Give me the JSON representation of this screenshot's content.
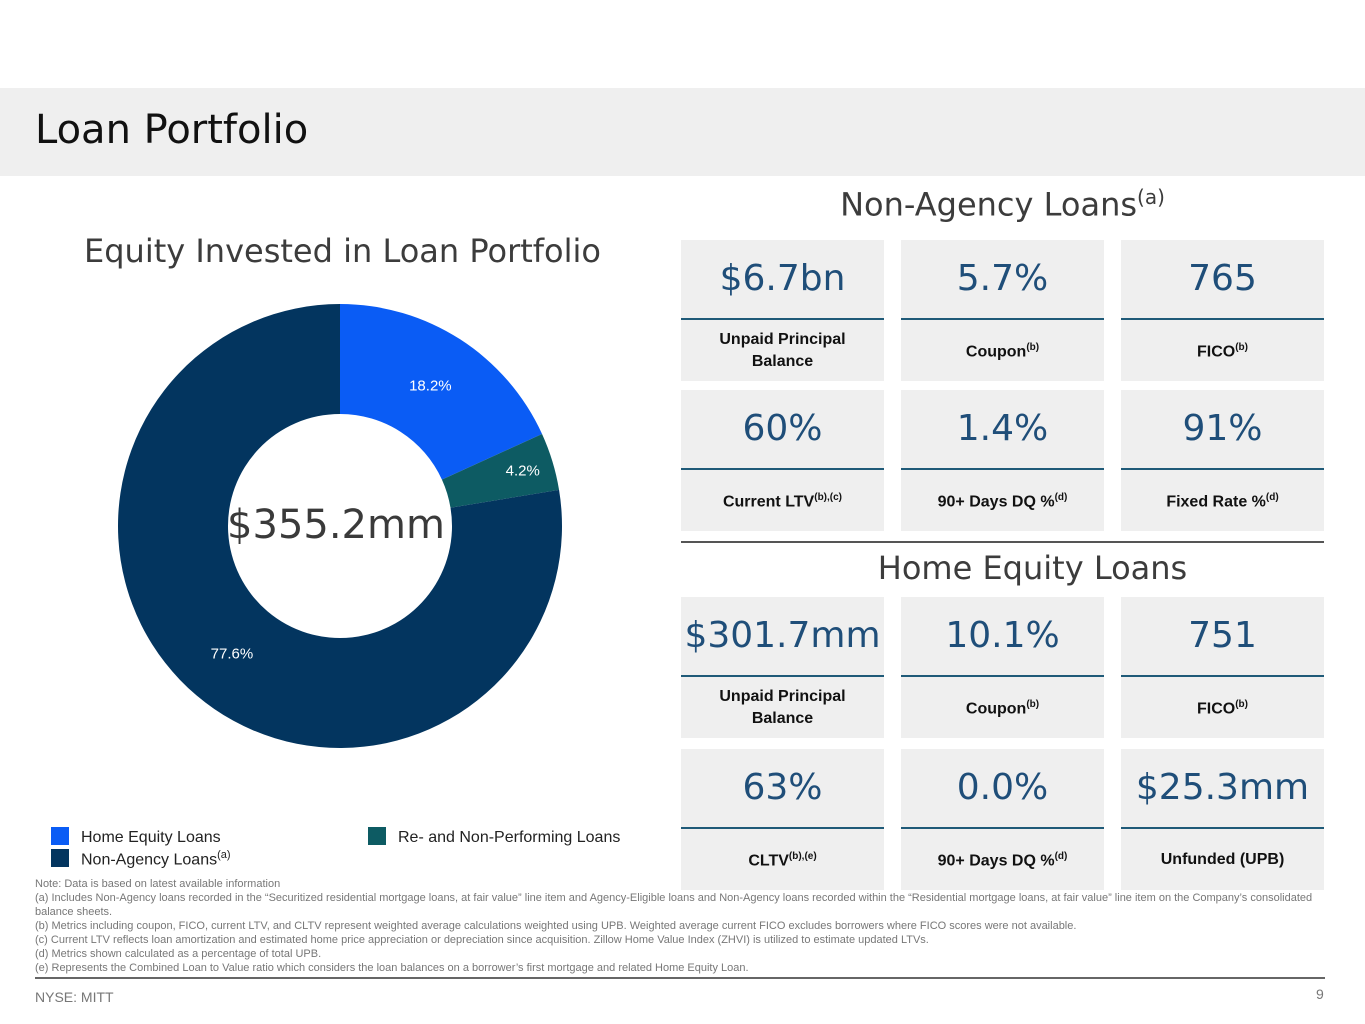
{
  "page": {
    "title": "Loan Portfolio"
  },
  "chart": {
    "title": "Equity Invested in Loan Portfolio",
    "center_label": "$355.2mm"
  },
  "chart_data": {
    "type": "pie",
    "title": "Equity Invested in Loan Portfolio",
    "center_label": "$355.2mm",
    "slices": [
      {
        "name": "Home Equity Loans",
        "value": 18.2,
        "label": "18.2%",
        "color": "#0a5cf5"
      },
      {
        "name": "Re- and Non-Performing Loans",
        "value": 4.2,
        "label": "4.2%",
        "color": "#0d5b63"
      },
      {
        "name": "Non-Agency Loans",
        "value": 77.6,
        "label": "77.6%",
        "color": "#03355f"
      }
    ]
  },
  "legend": {
    "home_equity": "Home Equity Loans",
    "rpl_npl": "Re- and Non-Performing Loans",
    "non_agency": "Non-Agency Loans",
    "non_agency_note": "(a)"
  },
  "non_agency": {
    "title": "Non-Agency Loans",
    "note": "(a)",
    "cards": [
      {
        "value": "$6.7bn",
        "label": "Unpaid Principal Balance",
        "sup": ""
      },
      {
        "value": "5.7%",
        "label": "Coupon",
        "sup": "(b)"
      },
      {
        "value": "765",
        "label": "FICO",
        "sup": "(b)"
      },
      {
        "value": "60%",
        "label": "Current LTV",
        "sup": "(b),(c)"
      },
      {
        "value": "1.4%",
        "label": "90+ Days DQ %",
        "sup": "(d)"
      },
      {
        "value": "91%",
        "label": "Fixed Rate %",
        "sup": "(d)"
      }
    ]
  },
  "home_equity": {
    "title": "Home Equity Loans",
    "cards": [
      {
        "value": "$301.7mm",
        "label": "Unpaid Principal Balance",
        "sup": ""
      },
      {
        "value": "10.1%",
        "label": "Coupon",
        "sup": "(b)"
      },
      {
        "value": "751",
        "label": "FICO",
        "sup": "(b)"
      },
      {
        "value": "63%",
        "label": "CLTV",
        "sup": "(b),(e)"
      },
      {
        "value": "0.0%",
        "label": "90+ Days DQ %",
        "sup": "(d)"
      },
      {
        "value": "$25.3mm",
        "label": "Unfunded (UPB)",
        "sup": ""
      }
    ]
  },
  "notes": [
    "Note: Data is based on latest available information",
    "(a) Includes Non-Agency loans recorded in the “Securitized residential mortgage loans, at fair value” line item and Agency-Eligible loans and Non-Agency loans recorded within the “Residential mortgage loans, at fair value” line item on the Company’s consolidated balance sheets.",
    "(b) Metrics including coupon, FICO, current LTV, and CLTV represent weighted average calculations weighted using UPB. Weighted average current FICO excludes borrowers where FICO scores were not available.",
    "(c) Current LTV reflects loan amortization and estimated home price appreciation or depreciation since acquisition. Zillow Home Value Index (ZHVI) is utilized to estimate updated LTVs.",
    "(d) Metrics shown calculated as a percentage of total UPB.",
    "(e) Represents the Combined Loan to Value ratio which considers the loan balances on a borrower’s first mortgage and related Home Equity Loan."
  ],
  "footer": {
    "ticker": "NYSE: MITT",
    "page_number": "9"
  }
}
